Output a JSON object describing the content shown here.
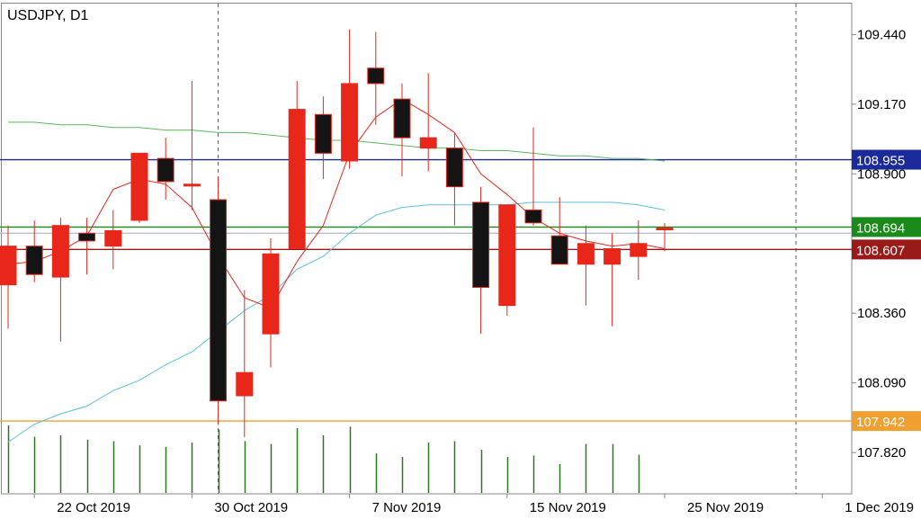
{
  "chart_data": {
    "type": "candlestick",
    "title": "USDJPY, D1",
    "colors": {
      "bull": "#e8261a",
      "bear": "#141414",
      "wick": "#e8261a",
      "ma_fast": "#e8261a",
      "ma_mid": "#5bc0de",
      "ma_slow": "#5cb85c",
      "volume": "#2a7a1a"
    },
    "ylim": [
      107.66,
      109.56
    ],
    "x_ticks": [
      {
        "i": 1,
        "label": "22 Oct 2019"
      },
      {
        "i": 7,
        "label": "30 Oct 2019"
      },
      {
        "i": 13,
        "label": "7 Nov 2019"
      },
      {
        "i": 19,
        "label": "15 Nov 2019"
      },
      {
        "i": 25,
        "label": "25 Nov 2019"
      },
      {
        "i": 31,
        "label": "1 Dec 2019"
      }
    ],
    "y_ticks": [
      109.44,
      109.17,
      108.9,
      108.36,
      108.09,
      107.82
    ],
    "y_tick_labels": [
      "109.440",
      "109.170",
      "108.900",
      "108.360",
      "108.090",
      "107.820"
    ],
    "x_count": 32,
    "vertical_dashed_lines": [
      8,
      30
    ],
    "candles": [
      {
        "o": 108.47,
        "h": 108.7,
        "l": 108.3,
        "c": 108.62
      },
      {
        "o": 108.62,
        "h": 108.72,
        "l": 108.48,
        "c": 108.51
      },
      {
        "o": 108.5,
        "h": 108.73,
        "l": 108.25,
        "c": 108.7
      },
      {
        "o": 108.67,
        "h": 108.73,
        "l": 108.51,
        "c": 108.64
      },
      {
        "o": 108.62,
        "h": 108.76,
        "l": 108.53,
        "c": 108.68
      },
      {
        "o": 108.72,
        "h": 108.98,
        "l": 108.71,
        "c": 108.98
      },
      {
        "o": 108.96,
        "h": 109.04,
        "l": 108.8,
        "c": 108.87
      },
      {
        "o": 108.86,
        "h": 109.26,
        "l": 108.76,
        "c": 108.86
      },
      {
        "o": 108.8,
        "h": 108.89,
        "l": 107.93,
        "c": 108.02
      },
      {
        "o": 108.04,
        "h": 108.45,
        "l": 107.88,
        "c": 108.13
      },
      {
        "o": 108.28,
        "h": 108.65,
        "l": 108.15,
        "c": 108.59
      },
      {
        "o": 108.61,
        "h": 109.26,
        "l": 108.61,
        "c": 109.15
      },
      {
        "o": 109.13,
        "h": 109.2,
        "l": 108.88,
        "c": 108.98
      },
      {
        "o": 108.95,
        "h": 109.46,
        "l": 108.92,
        "c": 109.25
      },
      {
        "o": 109.31,
        "h": 109.45,
        "l": 109.09,
        "c": 109.25
      },
      {
        "o": 109.19,
        "h": 109.25,
        "l": 108.89,
        "c": 109.04
      },
      {
        "o": 109.0,
        "h": 109.29,
        "l": 108.91,
        "c": 109.04
      },
      {
        "o": 109.0,
        "h": 109.06,
        "l": 108.7,
        "c": 108.85
      },
      {
        "o": 108.79,
        "h": 108.85,
        "l": 108.28,
        "c": 108.46
      },
      {
        "o": 108.39,
        "h": 108.78,
        "l": 108.35,
        "c": 108.78
      },
      {
        "o": 108.76,
        "h": 109.08,
        "l": 108.7,
        "c": 108.71
      },
      {
        "o": 108.66,
        "h": 108.81,
        "l": 108.55,
        "c": 108.55
      },
      {
        "o": 108.55,
        "h": 108.7,
        "l": 108.39,
        "c": 108.63
      },
      {
        "o": 108.55,
        "h": 108.67,
        "l": 108.31,
        "c": 108.61
      },
      {
        "o": 108.58,
        "h": 108.72,
        "l": 108.49,
        "c": 108.63
      },
      {
        "o": 108.69,
        "h": 108.71,
        "l": 108.6,
        "c": 108.69
      }
    ],
    "ma_fast": [
      108.55,
      108.56,
      108.6,
      108.66,
      108.84,
      108.88,
      108.86,
      108.77,
      108.58,
      108.42,
      108.38,
      108.56,
      108.7,
      108.98,
      109.12,
      109.19,
      109.13,
      109.06,
      108.9,
      108.82,
      108.73,
      108.67,
      108.64,
      108.62,
      108.63,
      108.61
    ],
    "ma_mid": [
      107.86,
      107.93,
      107.97,
      108.0,
      108.06,
      108.1,
      108.16,
      108.21,
      108.29,
      108.37,
      108.43,
      108.53,
      108.58,
      108.67,
      108.74,
      108.77,
      108.78,
      108.78,
      108.78,
      108.78,
      108.79,
      108.79,
      108.79,
      108.79,
      108.78,
      108.76
    ],
    "ma_slow": [
      109.1,
      109.1,
      109.09,
      109.09,
      109.08,
      109.08,
      109.07,
      109.07,
      109.06,
      109.06,
      109.05,
      109.04,
      109.03,
      109.03,
      109.02,
      109.01,
      109.0,
      109.0,
      108.99,
      108.99,
      108.98,
      108.97,
      108.97,
      108.96,
      108.96,
      108.95
    ],
    "volume": [
      0.94,
      0.78,
      0.8,
      0.74,
      0.72,
      0.66,
      0.64,
      0.7,
      0.88,
      0.72,
      0.68,
      0.9,
      0.8,
      0.92,
      0.55,
      0.5,
      0.7,
      0.72,
      0.6,
      0.5,
      0.52,
      0.4,
      0.68,
      0.68,
      0.53,
      0.0
    ],
    "horizontal_levels": [
      {
        "value": 108.955,
        "label": "108.955",
        "color": "#1a2a9a",
        "text_color": "#ffffff"
      },
      {
        "value": 108.694,
        "label": "108.694",
        "color": "#1a8a1a",
        "text_color": "#ffffff"
      },
      {
        "value": 108.607,
        "label": "108.607",
        "color": "#9a1a1a",
        "text_color": "#ffffff"
      },
      {
        "value": 107.942,
        "label": "107.942",
        "color": "#f0a030",
        "text_color": "#ffffff"
      },
      {
        "value": 108.67,
        "label": "",
        "color": "#b8c0d0",
        "text_color": "#ffffff"
      }
    ]
  }
}
